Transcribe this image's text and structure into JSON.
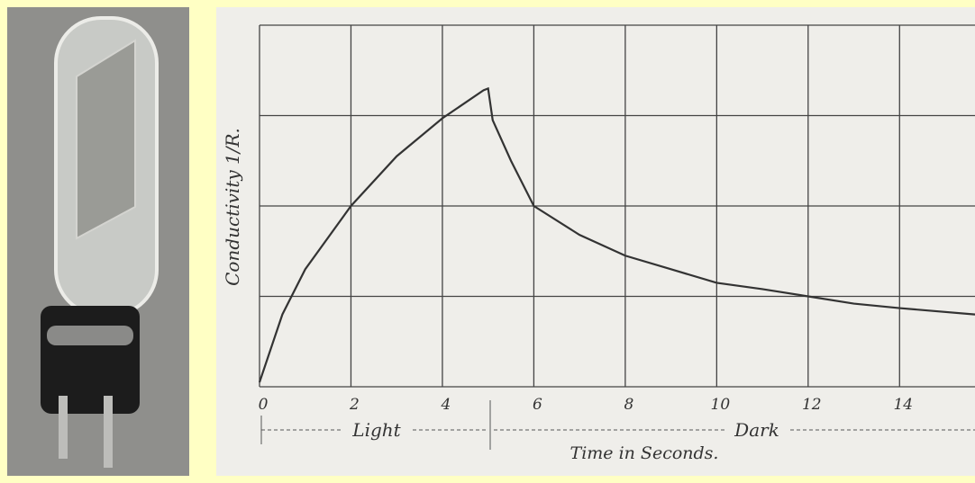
{
  "chart_data": {
    "type": "line",
    "y_label": "Conductivity 1/R.",
    "x_label": "Time in Seconds.",
    "annotations": [
      "Light",
      "Dark"
    ],
    "xlim": [
      0,
      15.65
    ],
    "ylim": [
      0,
      4
    ],
    "xticks": [
      0,
      2,
      4,
      6,
      8,
      10,
      12,
      14
    ],
    "yticks": [
      0,
      1,
      2,
      3,
      4
    ],
    "grid": true,
    "series": [
      {
        "color": "#333333",
        "x": [
          0,
          0.5,
          1,
          2,
          3,
          4,
          4.9,
          5.0,
          5.1,
          5.5,
          6,
          7,
          8,
          9,
          10,
          11,
          12,
          13,
          14,
          15.65
        ],
        "values": [
          0.05,
          0.8,
          1.3,
          2.0,
          2.55,
          2.97,
          3.28,
          3.3,
          2.95,
          2.5,
          2.0,
          1.68,
          1.45,
          1.3,
          1.15,
          1.08,
          1.0,
          0.92,
          0.87,
          0.8
        ]
      }
    ]
  }
}
